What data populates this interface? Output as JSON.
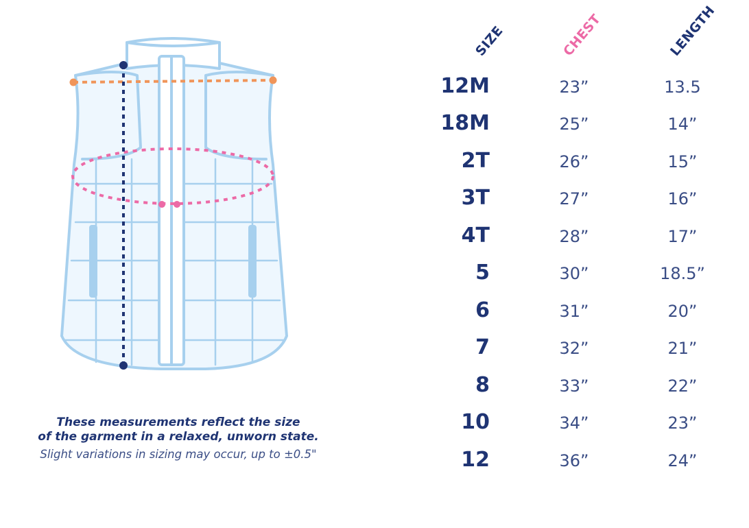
{
  "colors": {
    "navy": "#1f3473",
    "pink": "#ec6aa6",
    "orange": "#f0955a",
    "vest_stroke": "#a7d0ee",
    "vest_fill": "#eef7fe"
  },
  "notes": {
    "line1": "These measurements reflect the size",
    "line2": "of the garment in a relaxed, unworn state.",
    "line3": "Slight variations in sizing may occur, up to ±0.5\""
  },
  "table": {
    "headers": {
      "size": "SIZE",
      "chest": "CHEST",
      "length": "LENGTH"
    },
    "rows": [
      {
        "size": "12M",
        "chest": "23”",
        "length": "13.5"
      },
      {
        "size": "18M",
        "chest": "25”",
        "length": "14”"
      },
      {
        "size": "2T",
        "chest": "26”",
        "length": "15”"
      },
      {
        "size": "3T",
        "chest": "27”",
        "length": "16”"
      },
      {
        "size": "4T",
        "chest": "28”",
        "length": "17”"
      },
      {
        "size": "5",
        "chest": "30”",
        "length": "18.5”"
      },
      {
        "size": "6",
        "chest": "31”",
        "length": "20”"
      },
      {
        "size": "7",
        "chest": "32”",
        "length": "21”"
      },
      {
        "size": "8",
        "chest": "33”",
        "length": "22”"
      },
      {
        "size": "10",
        "chest": "34”",
        "length": "23”"
      },
      {
        "size": "12",
        "chest": "36”",
        "length": "24”"
      }
    ]
  }
}
